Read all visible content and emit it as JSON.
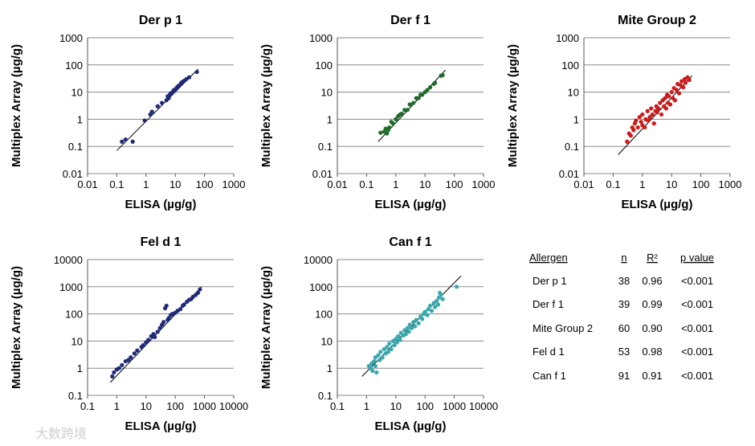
{
  "watermark": "大数跨境",
  "chart_data": [
    {
      "type": "scatter",
      "title": "Der p 1",
      "xlabel": "ELISA (µg/g)",
      "ylabel": "Multiplex Array (µg/g)",
      "x_scale": "log",
      "y_scale": "log",
      "xlim": [
        0.01,
        1000
      ],
      "ylim": [
        0.01,
        1000
      ],
      "x_ticks": [
        "0.01",
        "0.1",
        "1",
        "10",
        "100",
        "1000"
      ],
      "y_ticks": [
        "0.01",
        "0.1",
        "1",
        "10",
        "100",
        "1000"
      ],
      "point_color": "#1f2a78",
      "fit_line": [
        [
          0.1,
          0.07
        ],
        [
          60,
          70
        ]
      ],
      "points": [
        [
          0.15,
          0.15
        ],
        [
          0.2,
          0.18
        ],
        [
          0.35,
          0.15
        ],
        [
          0.9,
          0.9
        ],
        [
          1.4,
          1.5
        ],
        [
          1.6,
          1.9
        ],
        [
          2.5,
          3.0
        ],
        [
          3.5,
          4.0
        ],
        [
          5,
          5
        ],
        [
          5.5,
          7
        ],
        [
          6,
          6
        ],
        [
          6.5,
          8
        ],
        [
          7,
          9
        ],
        [
          8,
          10
        ],
        [
          9,
          12
        ],
        [
          10,
          12
        ],
        [
          11,
          14
        ],
        [
          12,
          16
        ],
        [
          14,
          18
        ],
        [
          16,
          22
        ],
        [
          18,
          24
        ],
        [
          20,
          26
        ],
        [
          24,
          30
        ],
        [
          30,
          35
        ],
        [
          55,
          55
        ]
      ]
    },
    {
      "type": "scatter",
      "title": "Der f 1",
      "xlabel": "ELISA (µg/g)",
      "ylabel": "Multiplex Array (µg/g)",
      "x_scale": "log",
      "y_scale": "log",
      "xlim": [
        0.01,
        1000
      ],
      "ylim": [
        0.01,
        1000
      ],
      "x_ticks": [
        "0.01",
        "0.1",
        "1",
        "10",
        "100",
        "1000"
      ],
      "y_ticks": [
        "0.01",
        "0.1",
        "1",
        "10",
        "100",
        "1000"
      ],
      "point_color": "#1e6b2a",
      "fit_line": [
        [
          0.25,
          0.15
        ],
        [
          50,
          65
        ]
      ],
      "points": [
        [
          0.3,
          0.32
        ],
        [
          0.4,
          0.35
        ],
        [
          0.45,
          0.45
        ],
        [
          0.5,
          0.3
        ],
        [
          0.55,
          0.4
        ],
        [
          0.6,
          0.5
        ],
        [
          0.7,
          0.8
        ],
        [
          0.8,
          0.7
        ],
        [
          1,
          1
        ],
        [
          1.2,
          1.3
        ],
        [
          1.4,
          1.5
        ],
        [
          1.6,
          1.6
        ],
        [
          2,
          2.2
        ],
        [
          2.5,
          2.2
        ],
        [
          3,
          3.5
        ],
        [
          4,
          4
        ],
        [
          5,
          6
        ],
        [
          6,
          6
        ],
        [
          7,
          8
        ],
        [
          8,
          8
        ],
        [
          10,
          10
        ],
        [
          12,
          12
        ],
        [
          15,
          15
        ],
        [
          20,
          20
        ],
        [
          22,
          22
        ],
        [
          35,
          40
        ],
        [
          40,
          42
        ]
      ]
    },
    {
      "type": "scatter",
      "title": "Mite Group 2",
      "xlabel": "ELISA (µg/g)",
      "ylabel": "Multiplex Array (µg/g)",
      "x_scale": "log",
      "y_scale": "log",
      "xlim": [
        0.01,
        1000
      ],
      "ylim": [
        0.01,
        1000
      ],
      "x_ticks": [
        "0.01",
        "0.1",
        "1",
        "10",
        "100",
        "1000"
      ],
      "y_ticks": [
        "0.01",
        "0.1",
        "1",
        "10",
        "100",
        "1000"
      ],
      "point_color": "#cc1a1a",
      "fit_line": [
        [
          0.15,
          0.05
        ],
        [
          50,
          40
        ]
      ],
      "points": [
        [
          0.3,
          0.15
        ],
        [
          0.35,
          0.3
        ],
        [
          0.4,
          0.25
        ],
        [
          0.45,
          0.5
        ],
        [
          0.5,
          0.4
        ],
        [
          0.55,
          0.7
        ],
        [
          0.6,
          0.9
        ],
        [
          0.7,
          0.5
        ],
        [
          0.8,
          1.2
        ],
        [
          0.9,
          0.8
        ],
        [
          1,
          1.5
        ],
        [
          1,
          0.6
        ],
        [
          1.2,
          0.5
        ],
        [
          1.3,
          1.0
        ],
        [
          1.5,
          2.0
        ],
        [
          1.6,
          0.9
        ],
        [
          1.8,
          1.2
        ],
        [
          2,
          2.5
        ],
        [
          2.2,
          1.5
        ],
        [
          2.5,
          0.7
        ],
        [
          2.8,
          2.0
        ],
        [
          3,
          3.0
        ],
        [
          3.2,
          1.8
        ],
        [
          3.5,
          2.5
        ],
        [
          4,
          4.0
        ],
        [
          4.5,
          1.5
        ],
        [
          5,
          5.0
        ],
        [
          5.5,
          3.0
        ],
        [
          6,
          6.0
        ],
        [
          6.5,
          2.5
        ],
        [
          7,
          8.0
        ],
        [
          7.5,
          4.0
        ],
        [
          8,
          7.0
        ],
        [
          9,
          3.5
        ],
        [
          10,
          10
        ],
        [
          11,
          6
        ],
        [
          12,
          14
        ],
        [
          13,
          5
        ],
        [
          15,
          12
        ],
        [
          16,
          20
        ],
        [
          18,
          9
        ],
        [
          20,
          18
        ],
        [
          22,
          25
        ],
        [
          25,
          15
        ],
        [
          28,
          30
        ],
        [
          30,
          22
        ],
        [
          35,
          35
        ],
        [
          40,
          28
        ]
      ]
    },
    {
      "type": "scatter",
      "title": "Fel d 1",
      "xlabel": "ELISA (µg/g)",
      "ylabel": "Multiplex Array (µg/g)",
      "x_scale": "log",
      "y_scale": "log",
      "xlim": [
        0.1,
        10000
      ],
      "ylim": [
        0.1,
        10000
      ],
      "x_ticks": [
        "0.1",
        "1",
        "10",
        "100",
        "1000",
        "10000"
      ],
      "y_ticks": [
        "0.1",
        "1",
        "10",
        "100",
        "1000",
        "10000"
      ],
      "point_color": "#1f2a78",
      "fit_line": [
        [
          0.6,
          0.3
        ],
        [
          800,
          1000
        ]
      ],
      "points": [
        [
          0.7,
          0.5
        ],
        [
          0.8,
          0.7
        ],
        [
          1,
          0.9
        ],
        [
          1.2,
          1.0
        ],
        [
          1.5,
          1.3
        ],
        [
          2,
          1.8
        ],
        [
          2.5,
          2.0
        ],
        [
          3,
          2.5
        ],
        [
          4,
          3.5
        ],
        [
          5,
          4.5
        ],
        [
          7,
          6
        ],
        [
          8,
          7
        ],
        [
          10,
          9
        ],
        [
          12,
          11
        ],
        [
          15,
          15
        ],
        [
          18,
          18
        ],
        [
          20,
          14
        ],
        [
          25,
          22
        ],
        [
          30,
          30
        ],
        [
          35,
          40
        ],
        [
          40,
          50
        ],
        [
          45,
          160
        ],
        [
          50,
          200
        ],
        [
          55,
          60
        ],
        [
          60,
          70
        ],
        [
          70,
          90
        ],
        [
          80,
          100
        ],
        [
          100,
          110
        ],
        [
          120,
          130
        ],
        [
          150,
          150
        ],
        [
          180,
          200
        ],
        [
          200,
          220
        ],
        [
          250,
          280
        ],
        [
          300,
          330
        ],
        [
          350,
          350
        ],
        [
          400,
          420
        ],
        [
          500,
          500
        ],
        [
          600,
          600
        ],
        [
          700,
          800
        ]
      ]
    },
    {
      "type": "scatter",
      "title": "Can f 1",
      "xlabel": "ELISA (µg/g)",
      "ylabel": "Multiplex Array (µg/g)",
      "x_scale": "log",
      "y_scale": "log",
      "xlim": [
        0.1,
        10000
      ],
      "ylim": [
        0.1,
        10000
      ],
      "x_ticks": [
        "0.1",
        "1",
        "10",
        "100",
        "1000",
        "10000"
      ],
      "y_ticks": [
        "0.1",
        "1",
        "10",
        "100",
        "1000",
        "10000"
      ],
      "point_color": "#3aa8ad",
      "fit_line": [
        [
          0.7,
          0.5
        ],
        [
          1700,
          2500
        ]
      ],
      "points": [
        [
          1.2,
          1.2
        ],
        [
          1.4,
          1.0
        ],
        [
          1.5,
          1.5
        ],
        [
          1.6,
          0.8
        ],
        [
          1.8,
          1.8
        ],
        [
          2,
          1.2
        ],
        [
          2,
          2.5
        ],
        [
          2.2,
          0.7
        ],
        [
          2.5,
          3.0
        ],
        [
          2.8,
          2.0
        ],
        [
          3,
          4.0
        ],
        [
          3.5,
          2.5
        ],
        [
          4,
          5.0
        ],
        [
          4.5,
          3.5
        ],
        [
          5,
          6.0
        ],
        [
          5.5,
          4.0
        ],
        [
          6,
          8.0
        ],
        [
          7,
          5.0
        ],
        [
          8,
          10
        ],
        [
          9,
          7
        ],
        [
          10,
          12
        ],
        [
          11,
          9
        ],
        [
          12,
          15
        ],
        [
          14,
          11
        ],
        [
          15,
          20
        ],
        [
          18,
          16
        ],
        [
          20,
          25
        ],
        [
          22,
          18
        ],
        [
          25,
          30
        ],
        [
          28,
          22
        ],
        [
          30,
          40
        ],
        [
          35,
          30
        ],
        [
          40,
          50
        ],
        [
          45,
          35
        ],
        [
          50,
          60
        ],
        [
          60,
          45
        ],
        [
          70,
          80
        ],
        [
          80,
          65
        ],
        [
          90,
          100
        ],
        [
          100,
          120
        ],
        [
          120,
          90
        ],
        [
          130,
          150
        ],
        [
          150,
          200
        ],
        [
          170,
          130
        ],
        [
          200,
          250
        ],
        [
          220,
          180
        ],
        [
          250,
          300
        ],
        [
          280,
          220
        ],
        [
          300,
          400
        ],
        [
          320,
          600
        ],
        [
          350,
          500
        ],
        [
          400,
          350
        ],
        [
          1200,
          1000
        ]
      ]
    }
  ],
  "stats_table": {
    "headers": [
      "Allergen",
      "n",
      "R²",
      "p value"
    ],
    "rows": [
      [
        "Der p 1",
        "38",
        "0.96",
        "<0.001"
      ],
      [
        "Der f 1",
        "39",
        "0.99",
        "<0.001"
      ],
      [
        "Mite Group 2",
        "60",
        "0.90",
        "<0.001"
      ],
      [
        "Fel d 1",
        "53",
        "0.98",
        "<0.001"
      ],
      [
        "Can f 1",
        "91",
        "0.91",
        "<0.001"
      ]
    ]
  }
}
